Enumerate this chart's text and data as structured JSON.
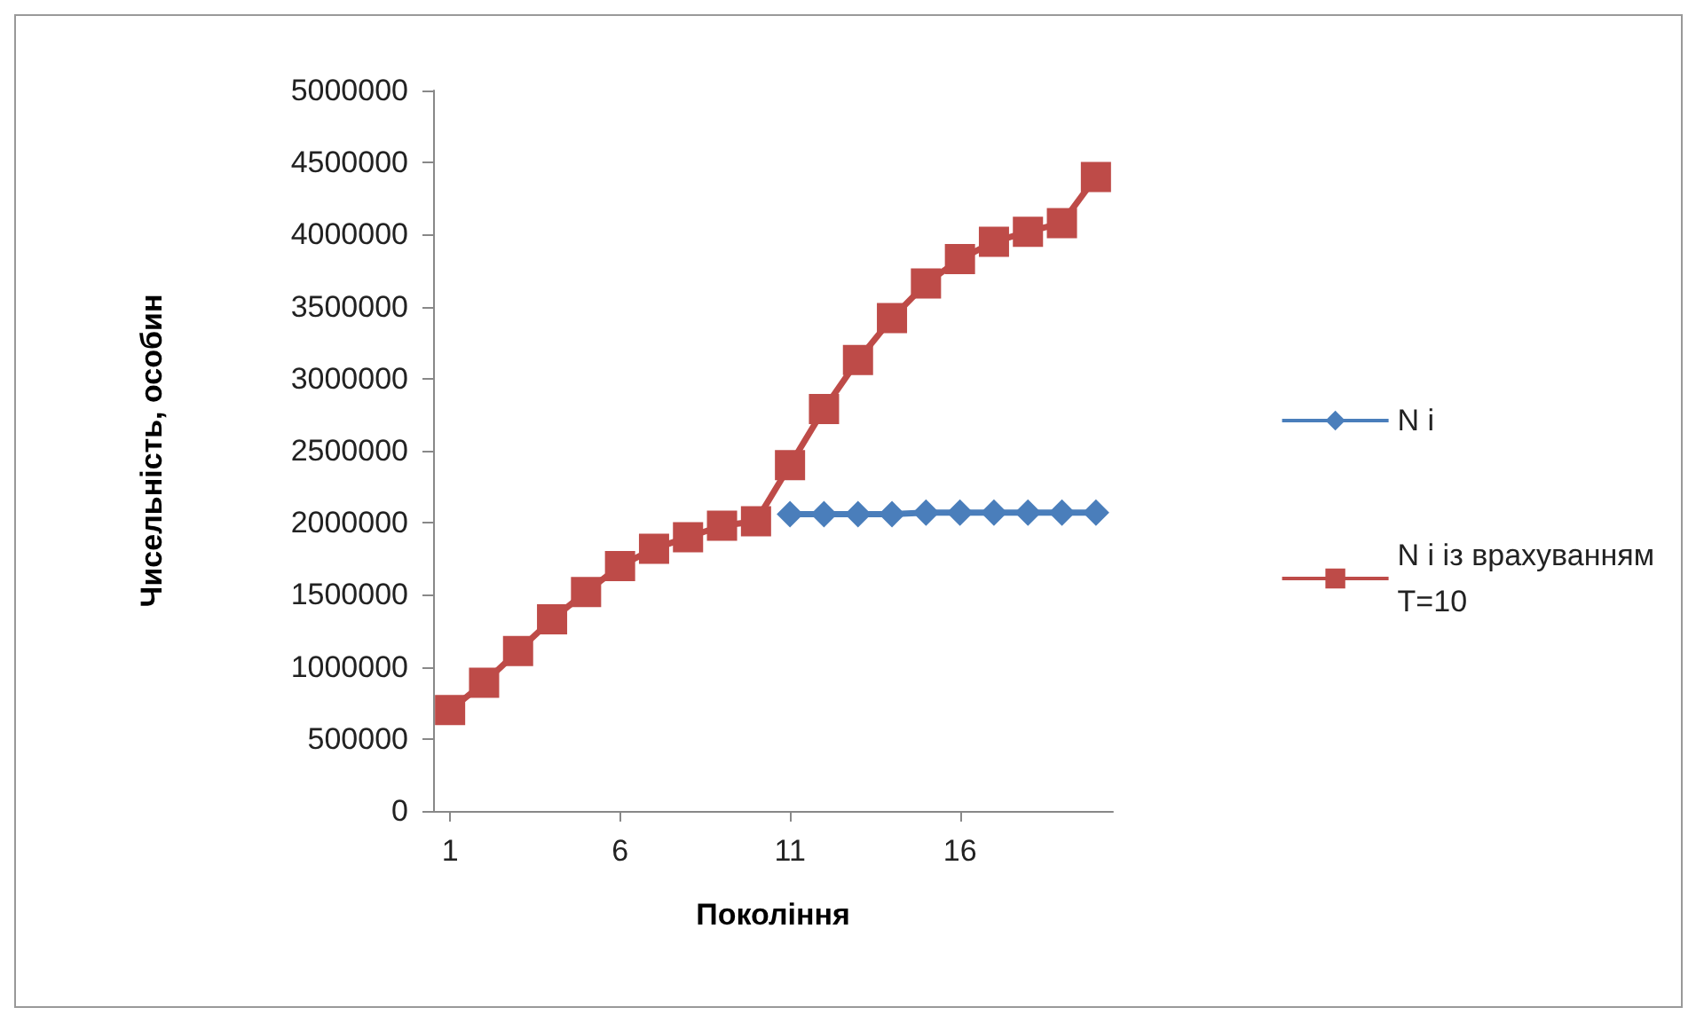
{
  "chart_data": {
    "type": "line",
    "xlabel": "Покоління",
    "ylabel": "Чисельність, особин",
    "x": [
      1,
      2,
      3,
      4,
      5,
      6,
      7,
      8,
      9,
      10,
      11,
      12,
      13,
      14,
      15,
      16,
      17,
      18,
      19,
      20
    ],
    "xlim": [
      0.5,
      20.5
    ],
    "xticks": [
      1,
      6,
      11,
      16
    ],
    "series": [
      {
        "name": "N i",
        "color": "#4a7ebb",
        "marker": "diamond",
        "values": [
          null,
          null,
          null,
          null,
          null,
          null,
          null,
          null,
          null,
          null,
          2060000,
          2060000,
          2060000,
          2060000,
          2070000,
          2070000,
          2070000,
          2070000,
          2070000,
          2070000
        ]
      },
      {
        "name": "N i із врахуванням T=10",
        "color": "#be4b48",
        "marker": "square",
        "values": [
          700000,
          890000,
          1110000,
          1330000,
          1520000,
          1700000,
          1820000,
          1900000,
          1980000,
          2010000,
          2400000,
          2790000,
          3130000,
          3420000,
          3660000,
          3830000,
          3950000,
          4020000,
          4080000,
          4400000
        ]
      }
    ],
    "ylim": [
      0,
      5000000
    ],
    "yticks": [
      0,
      500000,
      1000000,
      1500000,
      2000000,
      2500000,
      3000000,
      3500000,
      4000000,
      4500000,
      5000000
    ],
    "grid": false,
    "legend": "right"
  }
}
